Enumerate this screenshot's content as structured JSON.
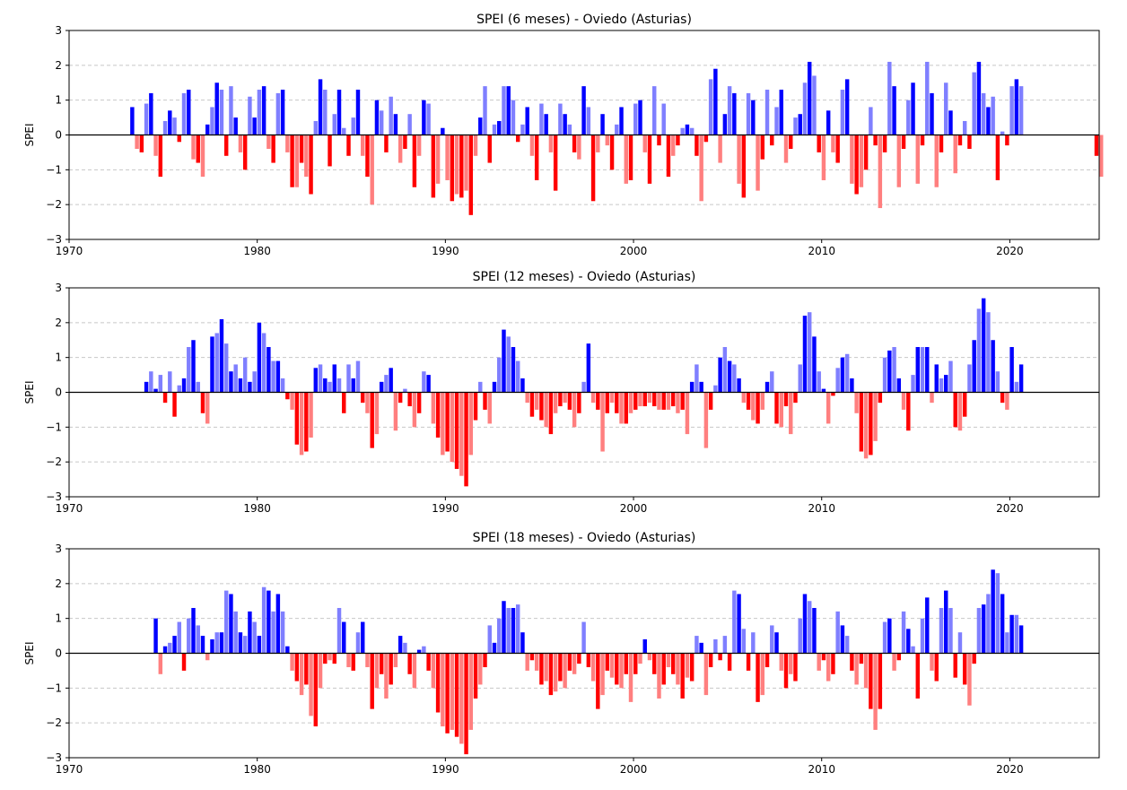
{
  "chart_data": [
    {
      "type": "bar",
      "title": "SPEI (6 meses) - Oviedo (Asturias)",
      "ylabel": "SPEI",
      "xlabel": "",
      "xlim": [
        1970,
        2024.75
      ],
      "ylim": [
        -3,
        3
      ],
      "x_ticks": [
        "1970",
        "1980",
        "1990",
        "2000",
        "2010",
        "2020"
      ],
      "y_ticks": [
        "-3",
        "-2",
        "-1",
        "0",
        "1",
        "2",
        "3"
      ],
      "grid": "horizontal dashed",
      "frequency": "quarterly (approximated from monthly bars)",
      "start_date": "1973-04",
      "values": [
        0.8,
        -0.4,
        -0.5,
        0.9,
        1.2,
        -0.6,
        -1.2,
        0.4,
        0.7,
        0.5,
        -0.2,
        1.2,
        1.3,
        -0.7,
        -0.8,
        -1.2,
        0.3,
        0.8,
        1.5,
        1.3,
        -0.6,
        1.4,
        0.5,
        -0.5,
        -1.0,
        1.1,
        0.5,
        1.3,
        1.4,
        -0.4,
        -0.8,
        1.2,
        1.3,
        -0.5,
        -1.5,
        -1.5,
        -0.8,
        -1.2,
        -1.7,
        0.4,
        1.6,
        1.3,
        -0.9,
        0.6,
        1.3,
        0.2,
        -0.6,
        0.5,
        1.3,
        -0.6,
        -1.2,
        -2.0,
        1.0,
        0.7,
        -0.5,
        1.1,
        0.6,
        -0.8,
        -0.4,
        0.6,
        -1.5,
        -0.6,
        1.0,
        0.9,
        -1.8,
        -1.4,
        0.2,
        -1.3,
        -1.9,
        -1.7,
        -1.8,
        -1.6,
        -2.3,
        -0.6,
        0.5,
        1.4,
        -0.8,
        0.3,
        0.4,
        1.4,
        1.4,
        1.0,
        -0.2,
        0.3,
        0.8,
        -0.6,
        -1.3,
        0.9,
        0.6,
        -0.5,
        -1.6,
        0.9,
        0.6,
        0.3,
        -0.5,
        -0.7,
        1.4,
        0.8,
        -1.9,
        -0.5,
        0.6,
        -0.3,
        -1.0,
        0.3,
        0.8,
        -1.4,
        -1.3,
        0.9,
        1.0,
        -0.5,
        -1.4,
        1.4,
        -0.3,
        0.9,
        -1.2,
        -0.6,
        -0.3,
        0.2,
        0.3,
        0.2,
        -0.6,
        -1.9,
        -0.2,
        1.6,
        1.9,
        -0.8,
        0.6,
        1.4,
        1.2,
        -1.4,
        -1.8,
        1.2,
        1.0,
        -1.6,
        -0.7,
        1.3,
        -0.3,
        0.8,
        1.3,
        -0.8,
        -0.4,
        0.5,
        0.6,
        1.5,
        2.1,
        1.7,
        -0.5,
        -1.3,
        0.7,
        -0.5,
        -0.8,
        1.3,
        1.6,
        -1.4,
        -1.7,
        -1.5,
        -1.0,
        0.8,
        -0.3,
        -2.1,
        -0.5,
        2.1,
        1.4,
        -1.5,
        -0.4,
        1.0,
        1.5,
        -1.4,
        -0.3,
        2.1,
        1.2,
        -1.5,
        -0.5,
        1.5,
        0.7,
        -1.1,
        -0.3,
        0.4,
        -0.4,
        1.8,
        2.1,
        1.2,
        0.8,
        1.1,
        -1.3,
        0.1,
        -0.3,
        1.4,
        1.6,
        1.4
      ],
      "extra_points": [
        {
          "date": "2024-07",
          "value": -0.6
        },
        {
          "date": "2024-10",
          "value": -1.2
        }
      ]
    },
    {
      "type": "bar",
      "title": "SPEI (12 meses) - Oviedo (Asturias)",
      "ylabel": "SPEI",
      "xlabel": "",
      "xlim": [
        1970,
        2024.75
      ],
      "ylim": [
        -3,
        3
      ],
      "x_ticks": [
        "1970",
        "1980",
        "1990",
        "2000",
        "2010",
        "2020"
      ],
      "y_ticks": [
        "-3",
        "-2",
        "-1",
        "0",
        "1",
        "2",
        "3"
      ],
      "grid": "horizontal dashed",
      "frequency": "quarterly (approximated from monthly bars)",
      "start_date": "1974-01",
      "values": [
        0.3,
        0.6,
        0.1,
        0.5,
        -0.3,
        0.6,
        -0.7,
        0.2,
        0.4,
        1.3,
        1.5,
        0.3,
        -0.6,
        -0.9,
        1.6,
        1.7,
        2.1,
        1.4,
        0.6,
        0.8,
        0.4,
        1.0,
        0.3,
        0.6,
        2.0,
        1.7,
        1.3,
        0.9,
        0.9,
        0.4,
        -0.2,
        -0.5,
        -1.5,
        -1.8,
        -1.7,
        -1.3,
        0.7,
        0.8,
        0.4,
        0.3,
        0.8,
        0.4,
        -0.6,
        0.8,
        0.4,
        0.9,
        -0.3,
        -0.6,
        -1.6,
        -1.2,
        0.3,
        0.5,
        0.7,
        -1.1,
        -0.3,
        0.1,
        -0.4,
        -1.0,
        -0.6,
        0.6,
        0.5,
        -0.9,
        -1.3,
        -1.8,
        -1.7,
        -2.0,
        -2.2,
        -2.4,
        -2.7,
        -1.8,
        -0.8,
        0.3,
        -0.5,
        -0.9,
        0.3,
        1.0,
        1.8,
        1.6,
        1.3,
        0.9,
        0.4,
        -0.3,
        -0.7,
        -0.5,
        -0.8,
        -1.0,
        -1.2,
        -0.6,
        -0.4,
        -0.3,
        -0.5,
        -1.0,
        -0.6,
        0.3,
        1.4,
        -0.3,
        -0.5,
        -1.7,
        -0.6,
        -0.3,
        -0.6,
        -0.9,
        -0.9,
        -0.6,
        -0.5,
        -0.4,
        -0.4,
        -0.3,
        -0.4,
        -0.5,
        -0.5,
        -0.5,
        -0.4,
        -0.6,
        -0.5,
        -1.2,
        0.3,
        0.8,
        0.3,
        -1.6,
        -0.5,
        0.2,
        1.0,
        1.3,
        0.9,
        0.8,
        0.4,
        -0.3,
        -0.5,
        -0.8,
        -0.9,
        -0.5,
        0.3,
        0.6,
        -0.9,
        -1.0,
        -0.4,
        -1.2,
        -0.3,
        0.8,
        2.2,
        2.3,
        1.6,
        0.6,
        0.1,
        -0.9,
        -0.1,
        0.7,
        1.0,
        1.1,
        0.4,
        -0.6,
        -1.7,
        -1.9,
        -1.8,
        -1.4,
        -0.3,
        1.0,
        1.2,
        1.3,
        0.4,
        -0.5,
        -1.1,
        0.5,
        1.3,
        1.3,
        1.3,
        -0.3,
        0.8,
        0.4,
        0.5,
        0.9,
        -1.0,
        -1.1,
        -0.7,
        0.8,
        1.5,
        2.4,
        2.7,
        2.3,
        1.5,
        0.6,
        -0.3,
        -0.5,
        1.3,
        0.3,
        0.8
      ]
    },
    {
      "type": "bar",
      "title": "SPEI (18 meses) - Oviedo (Asturias)",
      "ylabel": "SPEI",
      "xlabel": "",
      "xlim": [
        1970,
        2024.75
      ],
      "ylim": [
        -3,
        3
      ],
      "x_ticks": [
        "1970",
        "1980",
        "1990",
        "2000",
        "2010",
        "2020"
      ],
      "y_ticks": [
        "-3",
        "-2",
        "-1",
        "0",
        "1",
        "2",
        "3"
      ],
      "grid": "horizontal dashed",
      "frequency": "quarterly (approximated from monthly bars)",
      "start_date": "1974-07",
      "values": [
        1.0,
        -0.6,
        0.2,
        0.3,
        0.5,
        0.9,
        -0.5,
        1.0,
        1.3,
        0.8,
        0.5,
        -0.2,
        0.4,
        0.6,
        0.6,
        1.8,
        1.7,
        1.2,
        0.6,
        0.5,
        1.2,
        0.9,
        0.5,
        1.9,
        1.8,
        1.2,
        1.7,
        1.2,
        0.2,
        -0.5,
        -0.8,
        -1.2,
        -0.9,
        -1.8,
        -2.1,
        -1.0,
        -0.3,
        -0.2,
        -0.3,
        1.3,
        0.9,
        -0.4,
        -0.5,
        0.6,
        0.9,
        -0.4,
        -1.6,
        -1.0,
        -0.6,
        -1.3,
        -0.9,
        -0.4,
        0.5,
        0.3,
        -0.6,
        -1.0,
        0.1,
        0.2,
        -0.5,
        -1.0,
        -1.7,
        -2.1,
        -2.3,
        -2.2,
        -2.4,
        -2.6,
        -2.9,
        -2.2,
        -1.3,
        -0.9,
        -0.4,
        0.8,
        0.3,
        1.0,
        1.5,
        1.3,
        1.3,
        1.4,
        0.6,
        -0.5,
        -0.2,
        -0.5,
        -0.9,
        -0.8,
        -1.2,
        -1.1,
        -0.8,
        -1.0,
        -0.5,
        -0.6,
        -0.3,
        0.9,
        -0.4,
        -0.8,
        -1.6,
        -1.2,
        -0.5,
        -0.7,
        -0.9,
        -1.0,
        -0.6,
        -1.4,
        -0.6,
        -0.3,
        0.4,
        -0.2,
        -0.6,
        -1.3,
        -0.9,
        -0.4,
        -0.6,
        -0.9,
        -1.3,
        -0.7,
        -0.8,
        0.5,
        0.3,
        -1.2,
        -0.4,
        0.4,
        -0.2,
        0.5,
        -0.5,
        1.8,
        1.7,
        0.7,
        -0.5,
        0.6,
        -1.4,
        -1.2,
        -0.4,
        0.8,
        0.6,
        -0.5,
        -1.0,
        -0.6,
        -0.8,
        1.0,
        1.7,
        1.5,
        1.3,
        -0.5,
        -0.2,
        -0.8,
        -0.6,
        1.2,
        0.8,
        0.5,
        -0.5,
        -0.9,
        -0.3,
        -1.0,
        -1.6,
        -2.2,
        -1.6,
        0.9,
        1.0,
        -0.5,
        -0.2,
        1.2,
        0.7,
        0.2,
        -1.3,
        1.0,
        1.6,
        -0.5,
        -0.8,
        1.3,
        1.8,
        1.3,
        -0.7,
        0.6,
        -0.9,
        -1.5,
        -0.3,
        1.3,
        1.4,
        1.7,
        2.4,
        2.3,
        1.7,
        0.6,
        1.1,
        1.1,
        0.8
      ]
    }
  ],
  "colors": {
    "positive": "#0000ff",
    "positive_light": "#7f7fff",
    "negative": "#ff0000",
    "negative_light": "#ff7f7f",
    "zero_line": "#000000",
    "grid": "#c8c8c8"
  }
}
